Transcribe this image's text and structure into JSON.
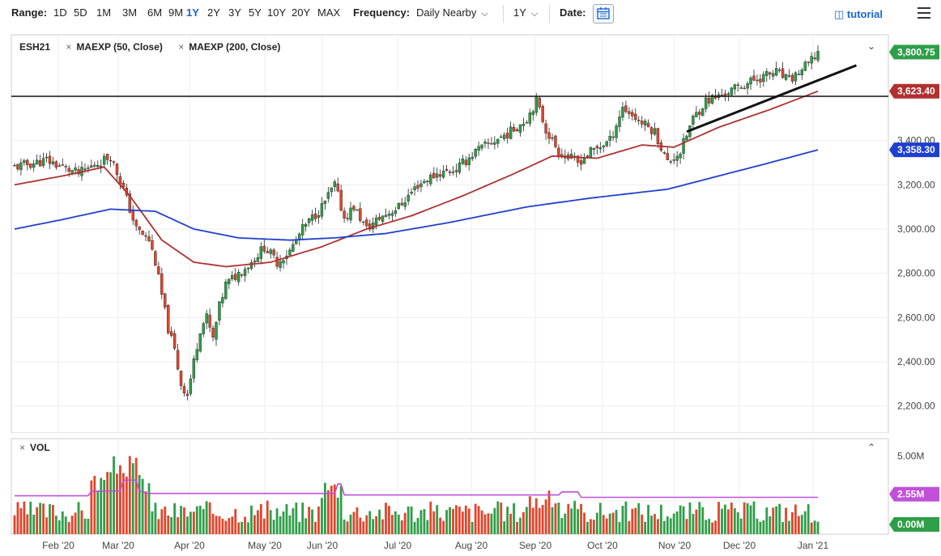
{
  "toolbar": {
    "range_label": "Range:",
    "ranges": [
      "1D",
      "5D",
      "1M",
      "3M",
      "6M",
      "9M",
      "1Y",
      "2Y",
      "3Y",
      "5Y",
      "10Y",
      "20Y",
      "MAX"
    ],
    "active_range": "1Y",
    "frequency_label": "Frequency:",
    "frequency_value": "Daily Nearby",
    "period_value": "1Y",
    "date_label": "Date:",
    "tutorial_label": "tutorial"
  },
  "main_panel": {
    "symbol": "ESH21",
    "studies": [
      "MAEXP (50, Close)",
      "MAEXP (200, Close)"
    ]
  },
  "volume_panel": {
    "title": "VOL"
  },
  "colors": {
    "up": "#2e9e48",
    "down": "#e2452b",
    "ma50": "#b03030",
    "ma200": "#1f3fd0",
    "vol_ma": "#c050d8",
    "active": "#1a66d6"
  },
  "chart_data": {
    "type": "candlestick",
    "symbol": "ESH21",
    "price_axis": {
      "ylim": [
        2100,
        3900
      ],
      "ticks": [
        "2,200.00",
        "2,400.00",
        "2,600.00",
        "2,800.00",
        "3,000.00",
        "3,200.00",
        "3,400.00"
      ]
    },
    "last_price_label": "3,800.75",
    "ma50_label": "3,623.40",
    "ma200_label": "3,358.30",
    "months": [
      "Feb '20",
      "Mar '20",
      "Apr '20",
      "May '20",
      "Jun '20",
      "Jul '20",
      "Aug '20",
      "Sep '20",
      "Oct '20",
      "Nov '20",
      "Dec '20",
      "Jan '21"
    ],
    "close_path": [
      [
        0,
        3280
      ],
      [
        10,
        3310
      ],
      [
        20,
        3250
      ],
      [
        30,
        3330
      ],
      [
        34,
        3180
      ],
      [
        38,
        3000
      ],
      [
        42,
        2950
      ],
      [
        44,
        2850
      ],
      [
        46,
        2700
      ],
      [
        48,
        2550
      ],
      [
        50,
        2450
      ],
      [
        52,
        2300
      ],
      [
        54,
        2250
      ],
      [
        56,
        2400
      ],
      [
        58,
        2550
      ],
      [
        60,
        2600
      ],
      [
        62,
        2500
      ],
      [
        64,
        2650
      ],
      [
        66,
        2750
      ],
      [
        70,
        2800
      ],
      [
        74,
        2850
      ],
      [
        78,
        2920
      ],
      [
        82,
        2850
      ],
      [
        86,
        2900
      ],
      [
        90,
        3000
      ],
      [
        96,
        3100
      ],
      [
        100,
        3200
      ],
      [
        103,
        3050
      ],
      [
        106,
        3100
      ],
      [
        110,
        3000
      ],
      [
        114,
        3050
      ],
      [
        120,
        3100
      ],
      [
        126,
        3200
      ],
      [
        132,
        3250
      ],
      [
        138,
        3270
      ],
      [
        144,
        3350
      ],
      [
        150,
        3400
      ],
      [
        155,
        3440
      ],
      [
        160,
        3500
      ],
      [
        163,
        3580
      ],
      [
        166,
        3450
      ],
      [
        170,
        3350
      ],
      [
        176,
        3300
      ],
      [
        180,
        3350
      ],
      [
        186,
        3400
      ],
      [
        190,
        3550
      ],
      [
        196,
        3480
      ],
      [
        200,
        3440
      ],
      [
        204,
        3300
      ],
      [
        208,
        3350
      ],
      [
        212,
        3500
      ],
      [
        216,
        3580
      ],
      [
        220,
        3600
      ],
      [
        226,
        3640
      ],
      [
        232,
        3680
      ],
      [
        238,
        3710
      ],
      [
        242,
        3670
      ],
      [
        246,
        3720
      ],
      [
        249,
        3760
      ],
      [
        251,
        3800
      ]
    ],
    "ma50_path": [
      [
        0,
        3200
      ],
      [
        15,
        3240
      ],
      [
        28,
        3280
      ],
      [
        36,
        3150
      ],
      [
        46,
        2950
      ],
      [
        56,
        2850
      ],
      [
        66,
        2830
      ],
      [
        80,
        2850
      ],
      [
        96,
        2920
      ],
      [
        110,
        3000
      ],
      [
        124,
        3060
      ],
      [
        140,
        3150
      ],
      [
        156,
        3250
      ],
      [
        168,
        3330
      ],
      [
        182,
        3320
      ],
      [
        196,
        3380
      ],
      [
        206,
        3370
      ],
      [
        220,
        3460
      ],
      [
        236,
        3540
      ],
      [
        251,
        3623
      ]
    ],
    "ma200_path": [
      [
        0,
        3000
      ],
      [
        14,
        3040
      ],
      [
        30,
        3090
      ],
      [
        44,
        3080
      ],
      [
        56,
        3000
      ],
      [
        70,
        2960
      ],
      [
        86,
        2950
      ],
      [
        100,
        2960
      ],
      [
        116,
        2980
      ],
      [
        136,
        3030
      ],
      [
        160,
        3100
      ],
      [
        180,
        3140
      ],
      [
        204,
        3180
      ],
      [
        220,
        3240
      ],
      [
        236,
        3300
      ],
      [
        251,
        3358
      ]
    ],
    "horizontal_line": 3600,
    "trendline": [
      [
        210,
        3440
      ],
      [
        263,
        3740
      ]
    ],
    "volume_axis": {
      "ticks": [
        "5.00M",
        "0.00M"
      ]
    },
    "volume_ma_label": "2.55M"
  }
}
